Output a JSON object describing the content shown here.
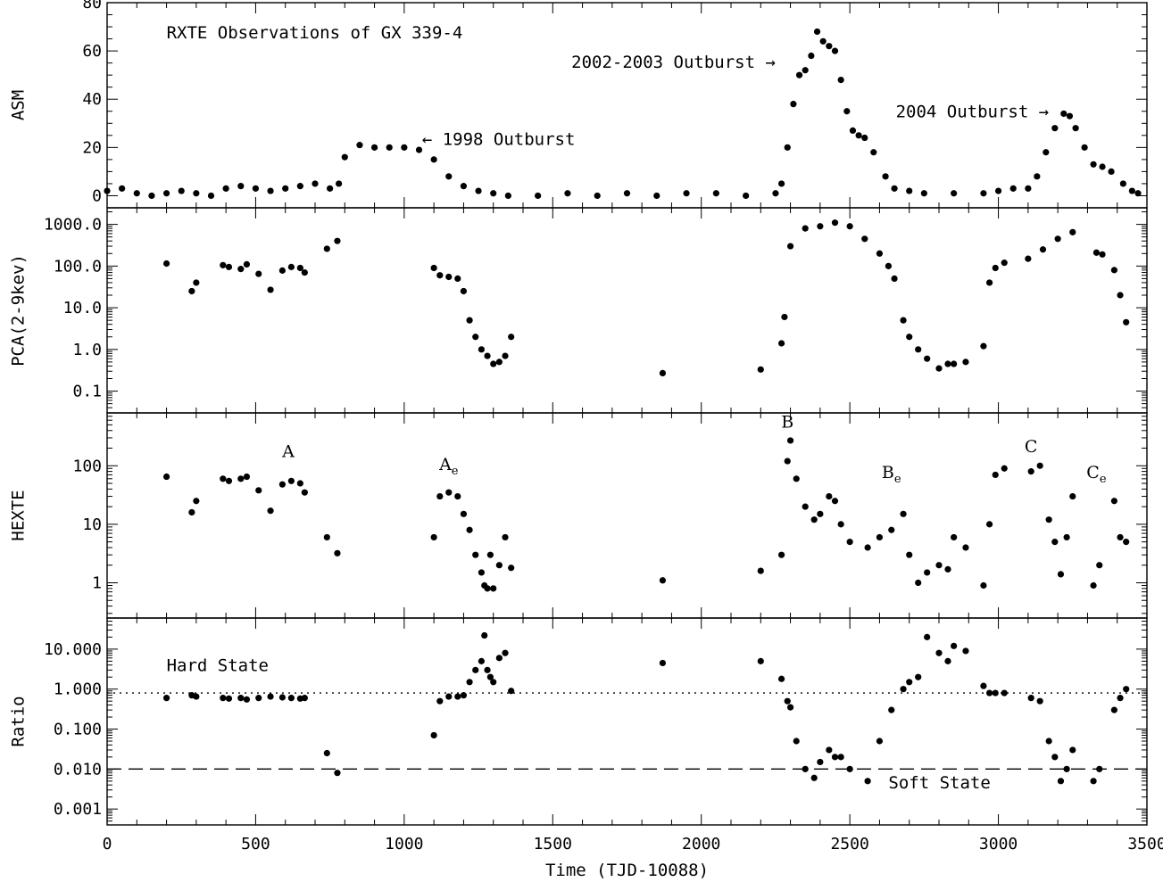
{
  "chart_data": [
    {
      "type": "scatter",
      "panel": "asm",
      "title": "RXTE Observations of GX 339-4",
      "ylabel": "ASM",
      "xlim": [
        0,
        3500
      ],
      "ylim": [
        -5,
        80
      ],
      "yscale": "linear",
      "yticks": [
        {
          "v": 0,
          "label": "0"
        },
        {
          "v": 20,
          "label": "20"
        },
        {
          "v": 40,
          "label": "40"
        },
        {
          "v": 60,
          "label": "60"
        },
        {
          "v": 80,
          "label": "80"
        }
      ],
      "annotations": [
        {
          "text": "← 1998 Outburst",
          "x": 1060,
          "y": 21
        },
        {
          "text": "2002-2003 Outburst →",
          "x": 2250,
          "y": 53
        },
        {
          "text": "2004 Outburst →",
          "x": 3170,
          "y": 32.5
        }
      ],
      "series": [
        {
          "name": "ASM rate",
          "x": [
            0,
            50,
            100,
            150,
            200,
            250,
            300,
            350,
            400,
            450,
            500,
            550,
            600,
            650,
            700,
            750,
            780,
            800,
            850,
            900,
            950,
            1000,
            1050,
            1100,
            1150,
            1200,
            1250,
            1300,
            1350,
            1450,
            1550,
            1650,
            1750,
            1850,
            1950,
            2050,
            2150,
            2250,
            2270,
            2290,
            2310,
            2330,
            2350,
            2370,
            2390,
            2410,
            2430,
            2450,
            2470,
            2490,
            2510,
            2530,
            2550,
            2580,
            2620,
            2650,
            2700,
            2750,
            2850,
            2950,
            3000,
            3050,
            3100,
            3130,
            3160,
            3190,
            3220,
            3240,
            3260,
            3290,
            3320,
            3350,
            3380,
            3420,
            3450,
            3470
          ],
          "y": [
            2,
            3,
            1,
            0,
            1,
            2,
            1,
            0,
            3,
            4,
            3,
            2,
            3,
            4,
            5,
            3,
            5,
            16,
            21,
            20,
            20,
            20,
            19,
            15,
            8,
            4,
            2,
            1,
            0,
            0,
            1,
            0,
            1,
            0,
            1,
            1,
            0,
            1,
            5,
            20,
            38,
            50,
            52,
            58,
            68,
            64,
            62,
            60,
            48,
            35,
            27,
            25,
            24,
            18,
            8,
            3,
            2,
            1,
            1,
            1,
            2,
            3,
            3,
            8,
            18,
            28,
            34,
            33,
            28,
            20,
            13,
            12,
            10,
            5,
            2,
            1
          ]
        }
      ]
    },
    {
      "type": "scatter",
      "panel": "pca",
      "ylabel": "PCA(2-9kev)",
      "xlim": [
        0,
        3500
      ],
      "ylim": [
        0.03,
        2500
      ],
      "yscale": "log",
      "yticks": [
        {
          "v": 0.1,
          "label": "0.1"
        },
        {
          "v": 1,
          "label": "1.0"
        },
        {
          "v": 10,
          "label": "10.0"
        },
        {
          "v": 100,
          "label": "100.0"
        },
        {
          "v": 1000,
          "label": "1000.0"
        }
      ],
      "series": [
        {
          "name": "PCA rate",
          "x": [
            200,
            285,
            300,
            390,
            410,
            450,
            470,
            510,
            550,
            590,
            620,
            650,
            665,
            740,
            775,
            1100,
            1120,
            1150,
            1180,
            1200,
            1220,
            1240,
            1260,
            1280,
            1300,
            1320,
            1340,
            1360,
            1870,
            2200,
            2270,
            2280,
            2300,
            2350,
            2400,
            2450,
            2500,
            2550,
            2600,
            2630,
            2650,
            2680,
            2700,
            2730,
            2760,
            2800,
            2830,
            2850,
            2890,
            2950,
            2970,
            2990,
            3020,
            3100,
            3150,
            3200,
            3250,
            3330,
            3350,
            3390,
            3410,
            3430
          ],
          "y": [
            115,
            25,
            40,
            105,
            95,
            85,
            110,
            65,
            27,
            78,
            95,
            90,
            70,
            260,
            400,
            90,
            60,
            55,
            50,
            25,
            5,
            2,
            1,
            0.7,
            0.45,
            0.5,
            0.7,
            2,
            0.27,
            0.33,
            1.4,
            6,
            300,
            800,
            900,
            1100,
            900,
            450,
            200,
            100,
            50,
            5,
            2,
            1,
            0.6,
            0.35,
            0.45,
            0.45,
            0.5,
            1.2,
            40,
            90,
            120,
            150,
            250,
            450,
            650,
            210,
            190,
            80,
            20,
            4.5
          ]
        }
      ]
    },
    {
      "type": "scatter",
      "panel": "hexte",
      "ylabel": "HEXTE",
      "xlim": [
        0,
        3500
      ],
      "ylim": [
        0.25,
        800
      ],
      "yscale": "log",
      "yticks": [
        {
          "v": 1,
          "label": "1"
        },
        {
          "v": 10,
          "label": "10"
        },
        {
          "v": 100,
          "label": "100"
        }
      ],
      "annotations": [
        {
          "text": "A",
          "sub": "",
          "x": 610,
          "y": 140
        },
        {
          "text": "A",
          "sub": "e",
          "x": 1150,
          "y": 85
        },
        {
          "text": "B",
          "sub": "",
          "x": 2290,
          "y": 450
        },
        {
          "text": "B",
          "sub": "e",
          "x": 2640,
          "y": 62
        },
        {
          "text": "C",
          "sub": "",
          "x": 3110,
          "y": 170
        },
        {
          "text": "C",
          "sub": "e",
          "x": 3330,
          "y": 62
        }
      ],
      "series": [
        {
          "name": "HEXTE rate",
          "x": [
            200,
            285,
            300,
            390,
            410,
            450,
            470,
            510,
            550,
            590,
            620,
            650,
            665,
            740,
            775,
            1100,
            1120,
            1150,
            1180,
            1200,
            1220,
            1240,
            1260,
            1270,
            1280,
            1290,
            1300,
            1320,
            1340,
            1360,
            1870,
            2200,
            2270,
            2290,
            2300,
            2320,
            2350,
            2380,
            2400,
            2430,
            2450,
            2470,
            2500,
            2560,
            2600,
            2640,
            2680,
            2700,
            2730,
            2760,
            2800,
            2830,
            2850,
            2890,
            2950,
            2970,
            2990,
            3020,
            3110,
            3140,
            3170,
            3190,
            3210,
            3230,
            3250,
            3320,
            3340,
            3390,
            3410,
            3430
          ],
          "y": [
            65,
            16,
            25,
            60,
            55,
            60,
            65,
            38,
            17,
            48,
            55,
            50,
            35,
            6,
            3.2,
            6,
            30,
            35,
            30,
            15,
            8,
            3,
            1.5,
            0.9,
            0.8,
            3,
            0.8,
            2,
            6,
            1.8,
            1.1,
            1.6,
            3,
            120,
            270,
            60,
            20,
            12,
            15,
            30,
            25,
            10,
            5,
            4,
            6,
            8,
            15,
            3,
            1,
            1.5,
            2,
            1.7,
            6,
            4,
            0.9,
            10,
            70,
            90,
            80,
            100,
            12,
            5,
            1.4,
            6,
            30,
            0.9,
            2,
            25,
            6,
            5
          ]
        }
      ]
    },
    {
      "type": "scatter",
      "panel": "ratio",
      "ylabel": "Ratio",
      "xlabel": "Time (TJD-10088)",
      "xlim": [
        0,
        3500
      ],
      "ylim": [
        0.0004,
        60
      ],
      "yscale": "log",
      "xticks": [
        {
          "v": 0,
          "label": "0"
        },
        {
          "v": 500,
          "label": "500"
        },
        {
          "v": 1000,
          "label": "1000"
        },
        {
          "v": 1500,
          "label": "1500"
        },
        {
          "v": 2000,
          "label": "2000"
        },
        {
          "v": 2500,
          "label": "2500"
        },
        {
          "v": 3000,
          "label": "3000"
        },
        {
          "v": 3500,
          "label": "3500"
        }
      ],
      "yticks": [
        {
          "v": 0.001,
          "label": "0.001"
        },
        {
          "v": 0.01,
          "label": "0.010"
        },
        {
          "v": 0.1,
          "label": "0.100"
        },
        {
          "v": 1,
          "label": "1.000"
        },
        {
          "v": 10,
          "label": "10.000"
        }
      ],
      "reference_lines": [
        {
          "y": 0.8,
          "style": "dotted",
          "label": "Hard State"
        },
        {
          "y": 0.01,
          "style": "dashed",
          "label": "Soft State"
        }
      ],
      "annotations": [
        {
          "text": "Hard State",
          "x": 200,
          "y": 2.8
        },
        {
          "text": "Soft State",
          "x": 2630,
          "y": 0.0033
        }
      ],
      "series": [
        {
          "name": "Hardness ratio",
          "x": [
            200,
            285,
            300,
            390,
            410,
            450,
            470,
            510,
            550,
            590,
            620,
            650,
            665,
            740,
            775,
            1100,
            1120,
            1150,
            1180,
            1200,
            1220,
            1240,
            1260,
            1270,
            1280,
            1290,
            1300,
            1320,
            1340,
            1360,
            1870,
            2200,
            2270,
            2290,
            2300,
            2320,
            2350,
            2380,
            2400,
            2430,
            2450,
            2470,
            2500,
            2560,
            2600,
            2640,
            2680,
            2700,
            2730,
            2760,
            2800,
            2830,
            2850,
            2890,
            2950,
            2970,
            2990,
            3020,
            3110,
            3140,
            3170,
            3190,
            3210,
            3230,
            3250,
            3320,
            3340,
            3390,
            3410,
            3430
          ],
          "y": [
            0.6,
            0.7,
            0.65,
            0.6,
            0.58,
            0.6,
            0.55,
            0.6,
            0.65,
            0.62,
            0.6,
            0.58,
            0.6,
            0.025,
            0.008,
            0.07,
            0.5,
            0.65,
            0.65,
            0.7,
            1.5,
            3,
            5,
            22,
            3,
            2,
            1.5,
            6,
            8,
            0.9,
            4.5,
            5,
            1.8,
            0.5,
            0.35,
            0.05,
            0.01,
            0.006,
            0.015,
            0.03,
            0.02,
            0.02,
            0.01,
            0.005,
            0.05,
            0.3,
            1,
            1.5,
            2,
            20,
            8,
            5,
            12,
            9,
            1.2,
            0.8,
            0.8,
            0.8,
            0.6,
            0.5,
            0.05,
            0.02,
            0.005,
            0.01,
            0.03,
            0.005,
            0.01,
            0.3,
            0.6,
            1
          ]
        }
      ]
    }
  ]
}
